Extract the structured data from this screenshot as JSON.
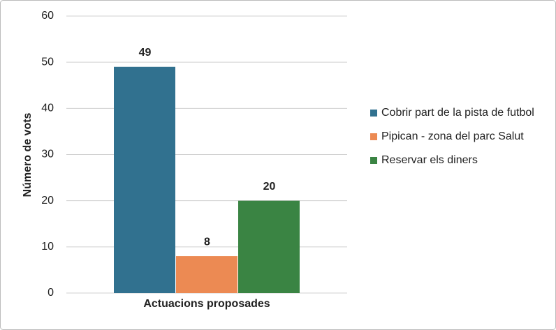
{
  "chart_data": {
    "type": "bar",
    "x_label": "Actuacions proposades",
    "y_label": "Número de vots",
    "categories": [
      null
    ],
    "series": [
      {
        "name": "Cobrir part de la pista de futbol",
        "color": "#31718f",
        "values": [
          49
        ]
      },
      {
        "name": "Pipican - zona del parc Salut",
        "color": "#ec8a53",
        "values": [
          8
        ]
      },
      {
        "name": "Reservar els diners",
        "color": "#3a8443",
        "values": [
          20
        ]
      }
    ],
    "ylim": [
      0,
      60
    ],
    "yticks": [
      0,
      10,
      20,
      30,
      40,
      50,
      60
    ],
    "grid": true,
    "legend": "right"
  }
}
